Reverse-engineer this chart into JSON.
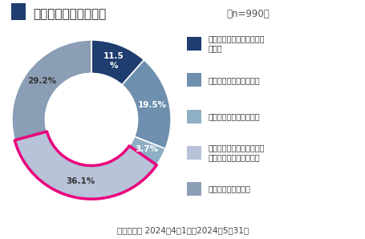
{
  "title": "育児・介護休業の取得",
  "title_n": "（n=990）",
  "values": [
    11.5,
    19.5,
    3.7,
    36.1,
    29.2
  ],
  "colors": [
    "#1f3d6e",
    "#6e8fad",
    "#8fafc4",
    "#b8c2d8",
    "#8c9eb5"
  ],
  "highlight_index": 3,
  "highlight_color": "#e8007d",
  "labels_inside": [
    "11.5\n%",
    "19.5%",
    "3.7%",
    "36.1%",
    "29.2%"
  ],
  "legend_labels": [
    "男性、女性ともに取得事例\nがある",
    "女性のみ取得事例がある",
    "男性のみ取得事例がある",
    "育児休暇制度はあるが、男\n女ともに取得事例はない",
    "育児休暇制度がない"
  ],
  "legend_colors": [
    "#1f3d6e",
    "#6e8fad",
    "#8fafc4",
    "#b8c2d8",
    "#8c9eb5"
  ],
  "footer": "調査期間： 2024年4月1日～2024年5月31日",
  "bg_color": "#ffffff",
  "title_color": "#222222",
  "square_color": "#1f3d6e"
}
